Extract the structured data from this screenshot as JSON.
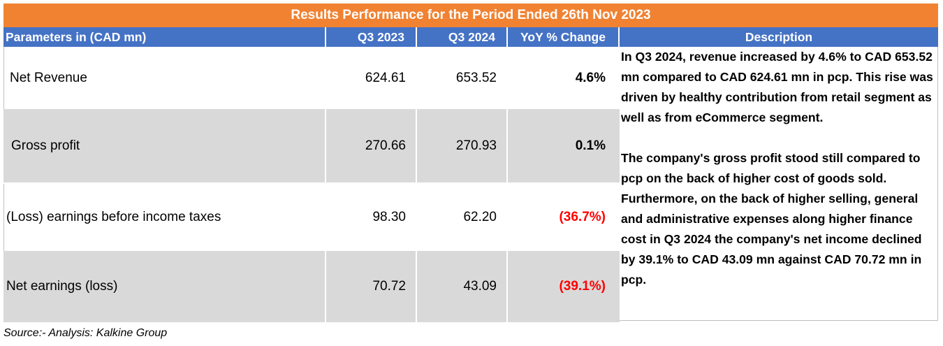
{
  "title": "Results Performance for the Period Ended 26th Nov 2023",
  "columns": {
    "parameter": "Parameters in (CAD mn)",
    "q3_2023": "Q3 2023",
    "q3_2024": "Q3 2024",
    "yoy": "YoY % Change",
    "description": "Description"
  },
  "rows": [
    {
      "parameter": "Net Revenue",
      "q3_2023": "624.61",
      "q3_2024": "653.52",
      "yoy": "4.6%"
    },
    {
      "parameter": "Gross profit",
      "q3_2023": "270.66",
      "q3_2024": "270.93",
      "yoy": "0.1%"
    },
    {
      "parameter": "(Loss) earnings before income taxes",
      "q3_2023": "98.30",
      "q3_2024": "62.20",
      "yoy": "(36.7%)"
    },
    {
      "parameter": "Net earnings (loss)",
      "q3_2023": "70.72",
      "q3_2024": "43.09",
      "yoy": "(39.1%)"
    }
  ],
  "description": {
    "paragraph_1": "In Q3 2024, revenue increased by 4.6% to CAD 653.52 mn compared to CAD 624.61 mn in pcp. This rise was driven by healthy contribution from retail segment as well as from eCommerce segment.",
    "paragraph_2": "The company's gross profit stood still compared to pcp on the back of higher cost of goods sold. Furthermore, on the back of higher selling, general and administrative expenses along higher finance cost in Q3 2024 the company's net income declined by 39.1% to CAD 43.09 mn against CAD 70.72 mn in pcp."
  },
  "source": "Source:- Analysis: Kalkine Group",
  "colors": {
    "title_bar": "#f08232",
    "header_row": "#4472c4",
    "shaded_row": "#d9d9d9",
    "negative": "#ff0000"
  }
}
